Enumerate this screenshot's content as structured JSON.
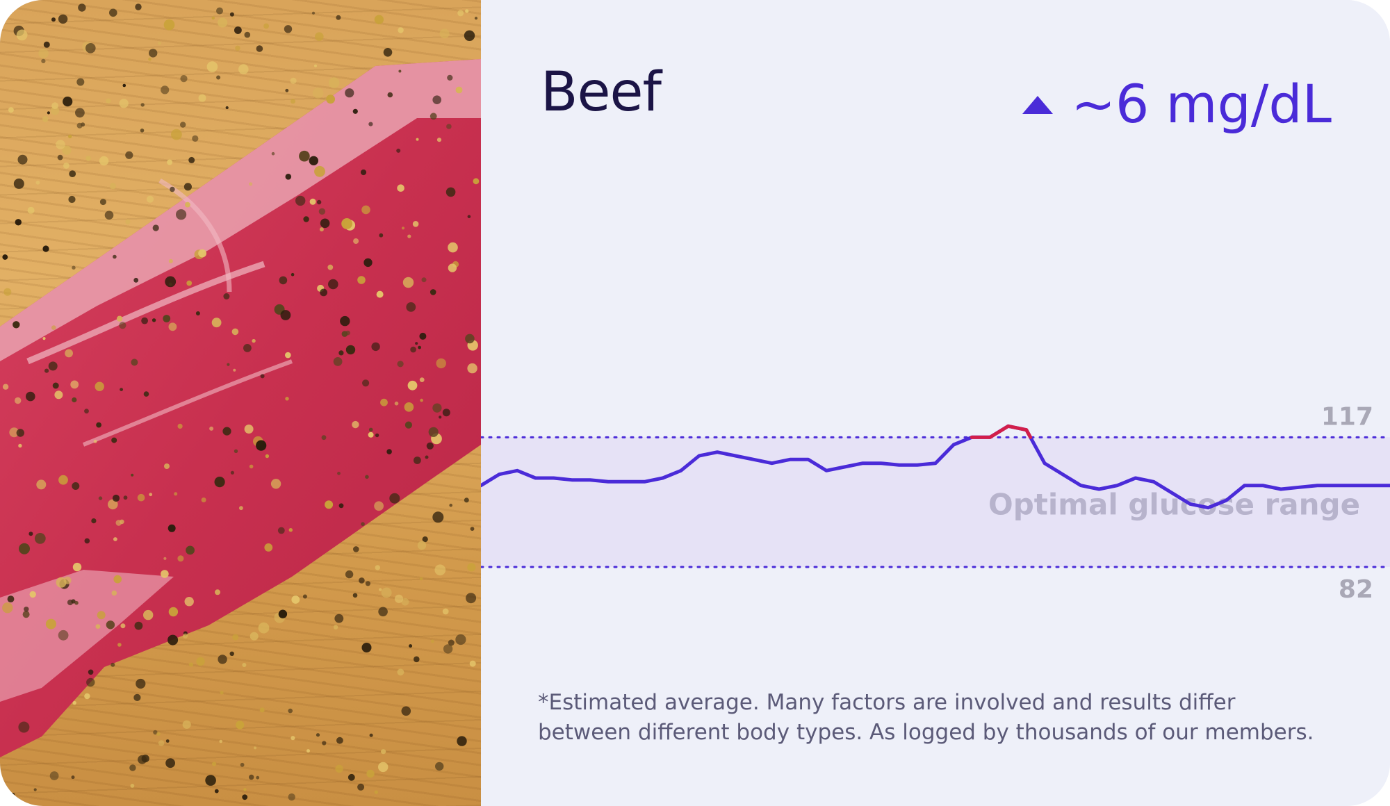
{
  "card": {
    "food_name": "Beef",
    "glucose_change": "~6 mg/dL",
    "footnote_line1": "*Estimated average. Many factors are involved and results differ",
    "footnote_line2": "between different body types. As logged by thousands of our members."
  },
  "colors": {
    "line": "#4a2bd8",
    "line_above_range": "#d21e4a",
    "range_fill": "#e6e2f6",
    "range_border": "#4a2bd8",
    "range_text": "#b7b3cc",
    "tick_text": "#a9a8b6"
  },
  "chart_data": {
    "type": "line",
    "title": "",
    "xlabel": "",
    "ylabel": "",
    "ylim": [
      70,
      130
    ],
    "range": {
      "low": 82,
      "high": 117,
      "label": "Optimal glucose range"
    },
    "tick_labels": [
      "117",
      "82"
    ],
    "x": [
      0,
      2,
      4,
      6,
      8,
      10,
      12,
      14,
      16,
      18,
      20,
      22,
      24,
      26,
      28,
      30,
      32,
      34,
      36,
      38,
      40,
      42,
      44,
      46,
      48,
      50,
      52,
      54,
      56,
      58,
      60,
      62,
      64,
      66,
      68,
      70,
      72,
      74,
      76,
      78,
      80,
      82,
      84,
      86,
      88,
      90,
      92,
      94,
      96,
      98,
      100
    ],
    "y": [
      104,
      107,
      108,
      106,
      106,
      105.5,
      105.5,
      105,
      105,
      105,
      106,
      108,
      112,
      113,
      112,
      111,
      110,
      111,
      111,
      108,
      109,
      110,
      110,
      109.5,
      109.5,
      110,
      115,
      117,
      117,
      120,
      119,
      110,
      107,
      104,
      103,
      104,
      106,
      105,
      102,
      99,
      98,
      100,
      104,
      104,
      103,
      103.5,
      104,
      104,
      104,
      104,
      104
    ]
  }
}
